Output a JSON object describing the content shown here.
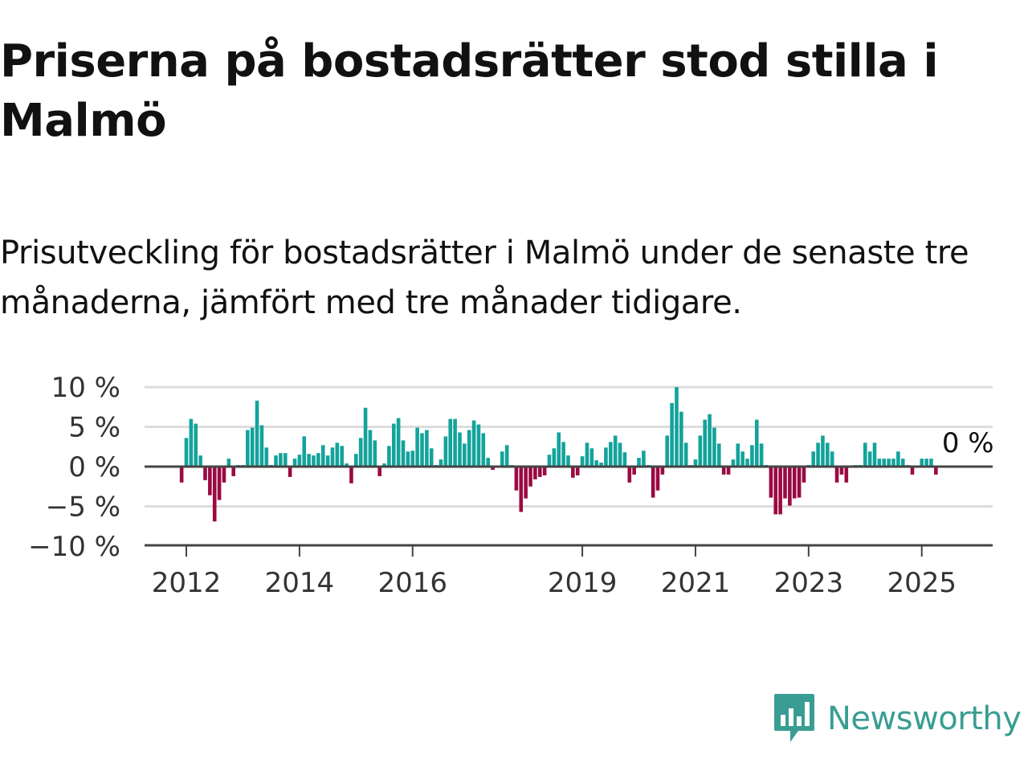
{
  "title": "Priserna på bostadsrätter stod stilla i Malmö",
  "subtitle": "Prisutveckling för bostadsrätter i Malmö under de senaste tre månaderna, jämfört med tre månader tidigare.",
  "brand": {
    "name": "Newsworthy",
    "icon": "newsworthy-logo-icon"
  },
  "colors": {
    "positive": "#13a39b",
    "negative": "#9b0a42",
    "brand": "#3a9d93",
    "grid": "#dddddd",
    "zero_line": "#444444"
  },
  "chart_data": {
    "type": "bar",
    "title": "",
    "xlabel": "",
    "ylabel": "",
    "ylim": [
      -10,
      10
    ],
    "yticks": [
      10,
      5,
      0,
      -5,
      -10
    ],
    "ytick_labels": [
      "10 %",
      "5 %",
      "0 %",
      "−5 %",
      "−10 %"
    ],
    "xticks": [
      2012,
      2014,
      2016,
      2019,
      2021,
      2023,
      2025
    ],
    "xtick_labels": [
      "2012",
      "2014",
      "2016",
      "2019",
      "2021",
      "2023",
      "2025"
    ],
    "grid": true,
    "start": "2011-12",
    "end": "2025-06",
    "last_value_label": "0 %",
    "values": [
      -2,
      3.6,
      6,
      5.4,
      1.4,
      -1.7,
      -3.6,
      -6.9,
      -4.2,
      -2,
      1,
      -1.2,
      0.2,
      0.2,
      4.6,
      4.9,
      8.3,
      5.2,
      2.4,
      0.2,
      1.4,
      1.7,
      1.7,
      -1.3,
      1,
      1.5,
      3.8,
      1.6,
      1.4,
      1.7,
      2.7,
      1.4,
      2.4,
      3,
      2.6,
      0.4,
      -2.1,
      1.6,
      3.6,
      7.4,
      4.6,
      3.3,
      -1.2,
      0.4,
      2.6,
      5.4,
      6.1,
      3.3,
      1.9,
      2,
      4.9,
      4.2,
      4.6,
      2.3,
      0.2,
      0.9,
      3.8,
      6,
      6,
      4.3,
      2.9,
      4.6,
      5.8,
      5.3,
      4.2,
      1.1,
      -0.4,
      0.1,
      1.9,
      2.7,
      0.2,
      -3,
      -5.7,
      -4,
      -2.5,
      -1.6,
      -1.3,
      -1.1,
      1.5,
      2.3,
      4.3,
      3.1,
      1.4,
      -1.4,
      -1.1,
      1.3,
      3,
      2.3,
      0.8,
      0.5,
      2.4,
      3.1,
      3.9,
      3,
      1.8,
      -2,
      -1,
      1.1,
      2,
      0.2,
      -3.9,
      -3,
      -1,
      3.9,
      8,
      10,
      6.9,
      3,
      0.2,
      0.9,
      3.9,
      5.9,
      6.6,
      4.9,
      2.9,
      -1,
      -1,
      0.9,
      2.9,
      1.9,
      1,
      2.7,
      5.9,
      2.9,
      0.2,
      -3.9,
      -6,
      -6,
      -4,
      -4.9,
      -4,
      -3.9,
      -2,
      0.2,
      1.9,
      3,
      3.9,
      3,
      1.9,
      -2,
      -1,
      -2,
      0.1,
      0.2,
      0.2,
      3,
      1.9,
      3,
      1,
      1,
      1,
      1,
      1.9,
      1,
      0.2,
      -1,
      0.1,
      1,
      1,
      1,
      -1,
      0
    ]
  }
}
